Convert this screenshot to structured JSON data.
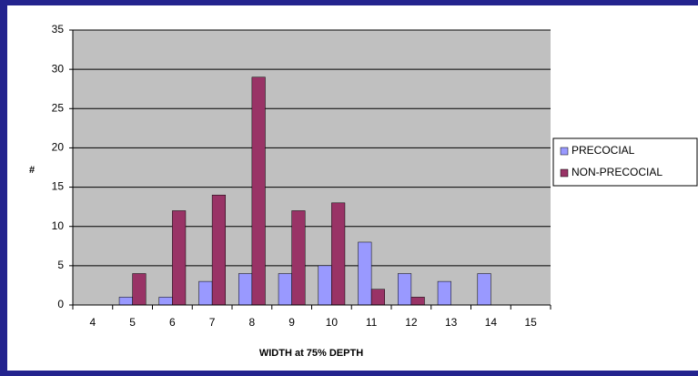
{
  "chart_data": {
    "type": "bar",
    "xlabel": "WIDTH at 75% DEPTH",
    "ylabel": "#",
    "categories": [
      "4",
      "5",
      "6",
      "7",
      "8",
      "9",
      "10",
      "11",
      "12",
      "13",
      "14",
      "15"
    ],
    "series": [
      {
        "name": "PRECOCIAL",
        "color": "#9999ff",
        "values": [
          0,
          1,
          1,
          3,
          4,
          4,
          5,
          8,
          4,
          3,
          4,
          0
        ]
      },
      {
        "name": "NON-PRECOCIAL",
        "color": "#993366",
        "values": [
          0,
          4,
          12,
          14,
          29,
          12,
          13,
          2,
          1,
          0,
          0,
          0
        ]
      }
    ],
    "ylim": [
      0,
      35
    ],
    "yticks": [
      0,
      5,
      10,
      15,
      20,
      25,
      30,
      35
    ],
    "grid": true,
    "legend": "right"
  }
}
